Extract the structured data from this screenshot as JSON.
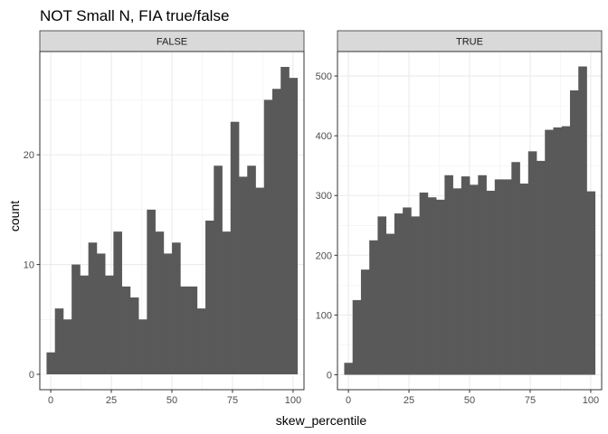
{
  "chart_data": {
    "type": "bar",
    "title": "NOT Small N, FIA true/false",
    "xlabel": "skew_percentile",
    "ylabel": "count",
    "bar_color": "#595959",
    "strip_color": "#d9d9d9",
    "grid": true,
    "bin_width": 3.45,
    "bin_start": -1.72,
    "x_ticks": [
      0,
      25,
      50,
      75,
      100
    ],
    "xlim": [
      -4.5,
      104.5
    ],
    "panels": [
      {
        "label": "FALSE",
        "ylim": [
          -1.4,
          29.4
        ],
        "y_ticks": [
          0,
          10,
          20
        ],
        "series": [
          {
            "values": [
              2,
              6,
              5,
              10,
              9,
              12,
              11,
              9,
              13,
              8,
              7,
              5,
              15,
              13,
              11,
              12,
              8,
              8,
              6,
              14,
              19,
              13,
              23,
              18,
              19,
              17,
              25,
              26,
              28,
              27
            ]
          }
        ]
      },
      {
        "label": "TRUE",
        "ylim": [
          -25,
          541
        ],
        "y_ticks": [
          0,
          100,
          200,
          300,
          400,
          500
        ],
        "series": [
          {
            "values": [
              20,
              125,
              176,
              225,
              265,
              236,
              270,
              280,
              265,
              305,
              297,
              293,
              334,
              312,
              332,
              318,
              334,
              308,
              327,
              327,
              356,
              320,
              374,
              358,
              410,
              414,
              416,
              476,
              516,
              307
            ]
          }
        ]
      }
    ]
  }
}
